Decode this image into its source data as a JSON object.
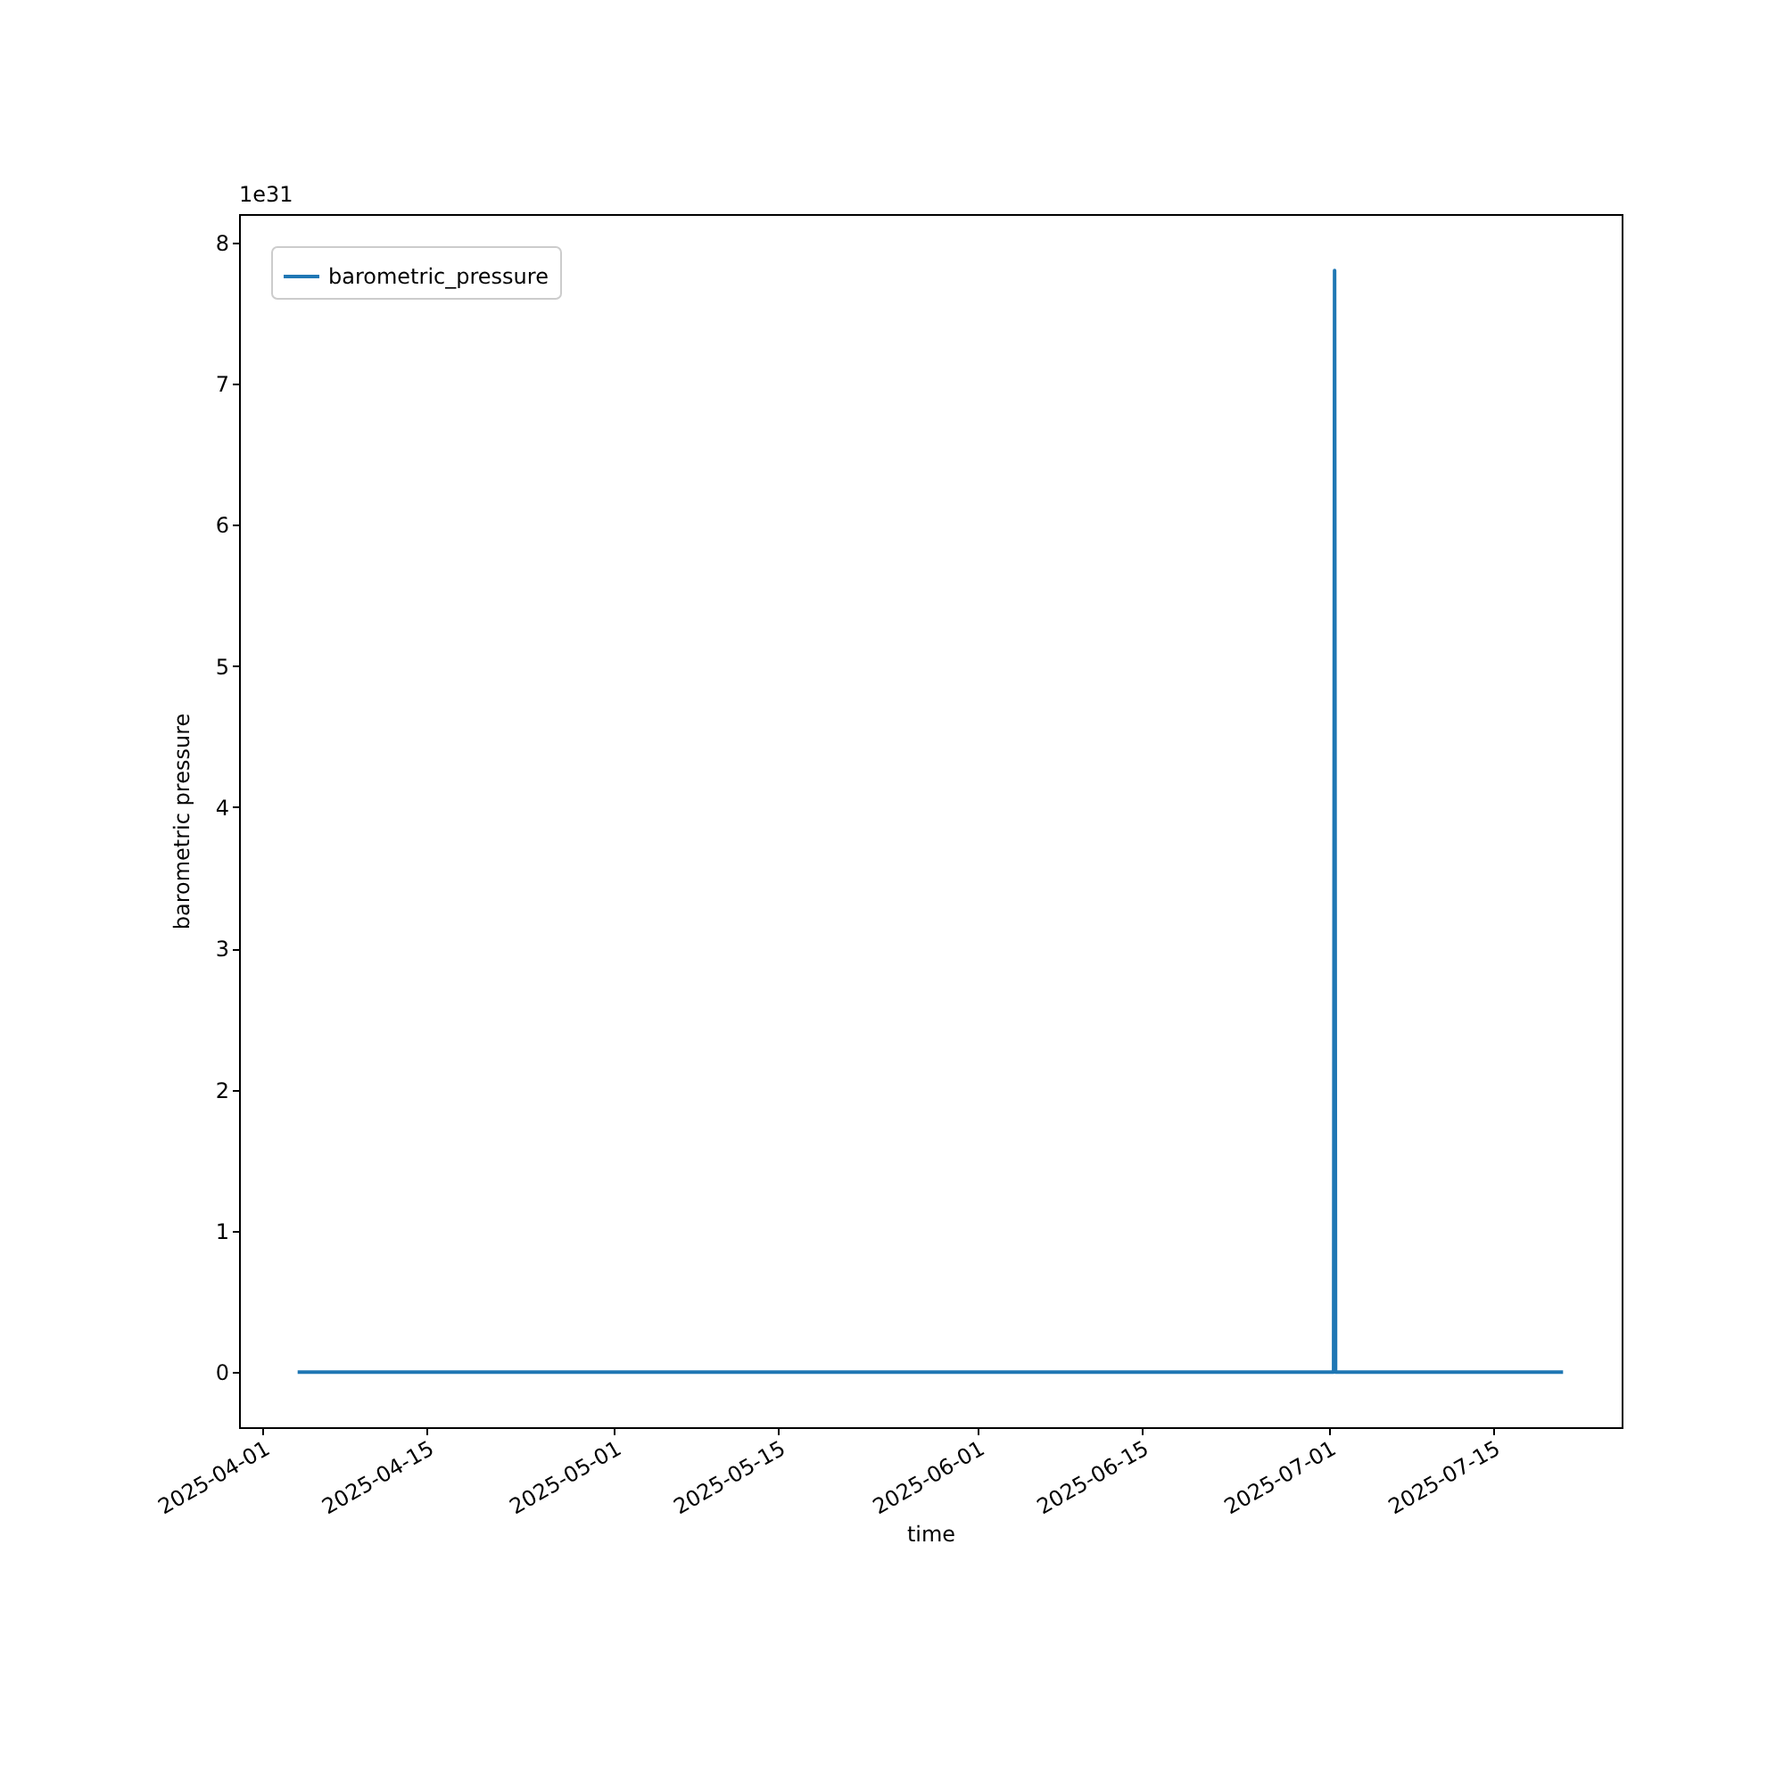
{
  "chart_data": {
    "type": "line",
    "xlabel": "time",
    "ylabel": "barometric pressure",
    "x": [
      "2025-04-04",
      "2025-07-01T10:00",
      "2025-07-01T12:00",
      "2025-07-01T14:00",
      "2025-07-21"
    ],
    "series": [
      {
        "name": "barometric_pressure",
        "color": "#1f77b4",
        "values": [
          0,
          0,
          7.8,
          0,
          0
        ]
      }
    ],
    "xlim": [
      "2025-03-30",
      "2025-07-26"
    ],
    "xticks": [
      "2025-04-01",
      "2025-04-15",
      "2025-05-01",
      "2025-05-15",
      "2025-06-01",
      "2025-06-15",
      "2025-07-01",
      "2025-07-15"
    ],
    "ylim": [
      -0.39,
      8.2
    ],
    "yticks": [
      0,
      1,
      2,
      3,
      4,
      5,
      6,
      7,
      8
    ],
    "annotations": [
      "1e31"
    ],
    "grid": false,
    "legend": "top left",
    "line_style": "solid",
    "marker": "none"
  }
}
